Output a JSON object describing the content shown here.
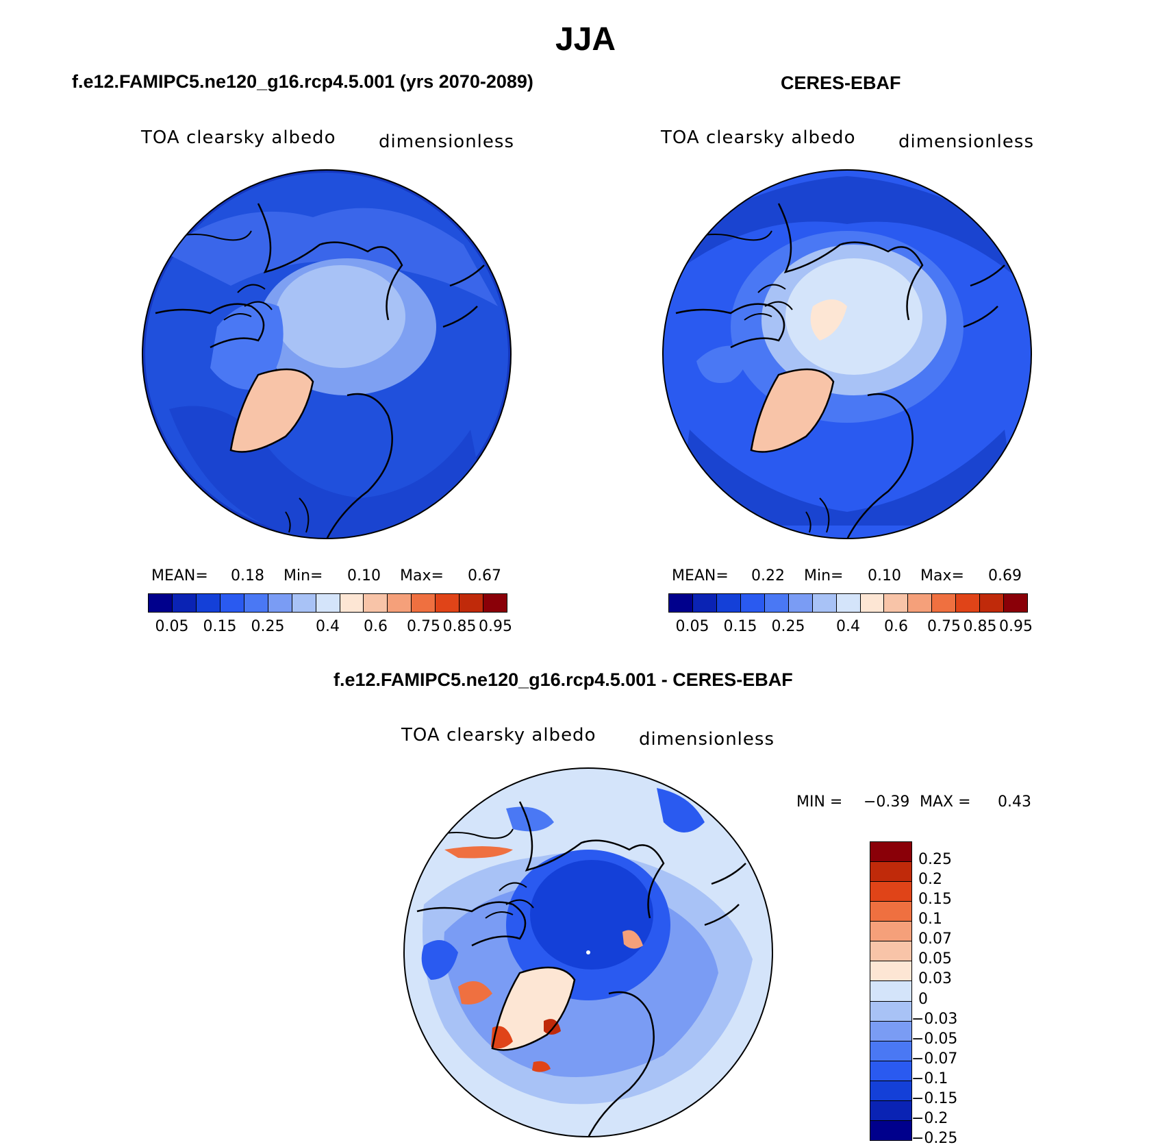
{
  "title": "JJA",
  "panels": [
    {
      "case_title": "f.e12.FAMIPC5.ne120_g16.rcp4.5.001 (yrs 2070-2089)",
      "variable": "TOA clearsky albedo",
      "units": "dimensionless",
      "stats": {
        "mean_label": "MEAN=",
        "mean": "0.18",
        "min_label": "Min=",
        "min": "0.10",
        "max_label": "Max=",
        "max": "0.67"
      }
    },
    {
      "case_title": "CERES-EBAF",
      "variable": "TOA clearsky albedo",
      "units": "dimensionless",
      "stats": {
        "mean_label": "MEAN=",
        "mean": "0.22",
        "min_label": "Min=",
        "min": "0.10",
        "max_label": "Max=",
        "max": "0.69"
      }
    }
  ],
  "diff_panel": {
    "case_title": "f.e12.FAMIPC5.ne120_g16.rcp4.5.001 - CERES-EBAF",
    "variable": "TOA clearsky albedo",
    "units": "dimensionless",
    "stats": {
      "min_label": "MIN =",
      "min": "−0.39",
      "max_label": "MAX =",
      "max": "0.43"
    }
  },
  "colorbars": {
    "abs_ticks": [
      "0.05",
      "0.15",
      "0.25",
      "0.4",
      "0.6",
      "0.75",
      "0.85",
      "0.95"
    ],
    "abs_colors": [
      "#00008c",
      "#0a23b4",
      "#1440d8",
      "#2a5af0",
      "#4a78f4",
      "#7a9cf4",
      "#a8c2f6",
      "#d4e4fa",
      "#fde6d4",
      "#f8c4a8",
      "#f5a07a",
      "#ef7040",
      "#e04418",
      "#c02a0a",
      "#8a0008"
    ],
    "diff_ticks": [
      "0.25",
      "0.2",
      "0.15",
      "0.1",
      "0.07",
      "0.05",
      "0.03",
      "0",
      "−0.03",
      "−0.05",
      "−0.07",
      "−0.1",
      "−0.15",
      "−0.2",
      "−0.25"
    ],
    "diff_colors": [
      "#8a0008",
      "#c02a0a",
      "#e04418",
      "#ef7040",
      "#f5a07a",
      "#f8c4a8",
      "#fde6d4",
      "#d4e4fa",
      "#a8c2f6",
      "#7a9cf4",
      "#4a78f4",
      "#2a5af0",
      "#1440d8",
      "#0a23b4",
      "#00008c"
    ]
  }
}
